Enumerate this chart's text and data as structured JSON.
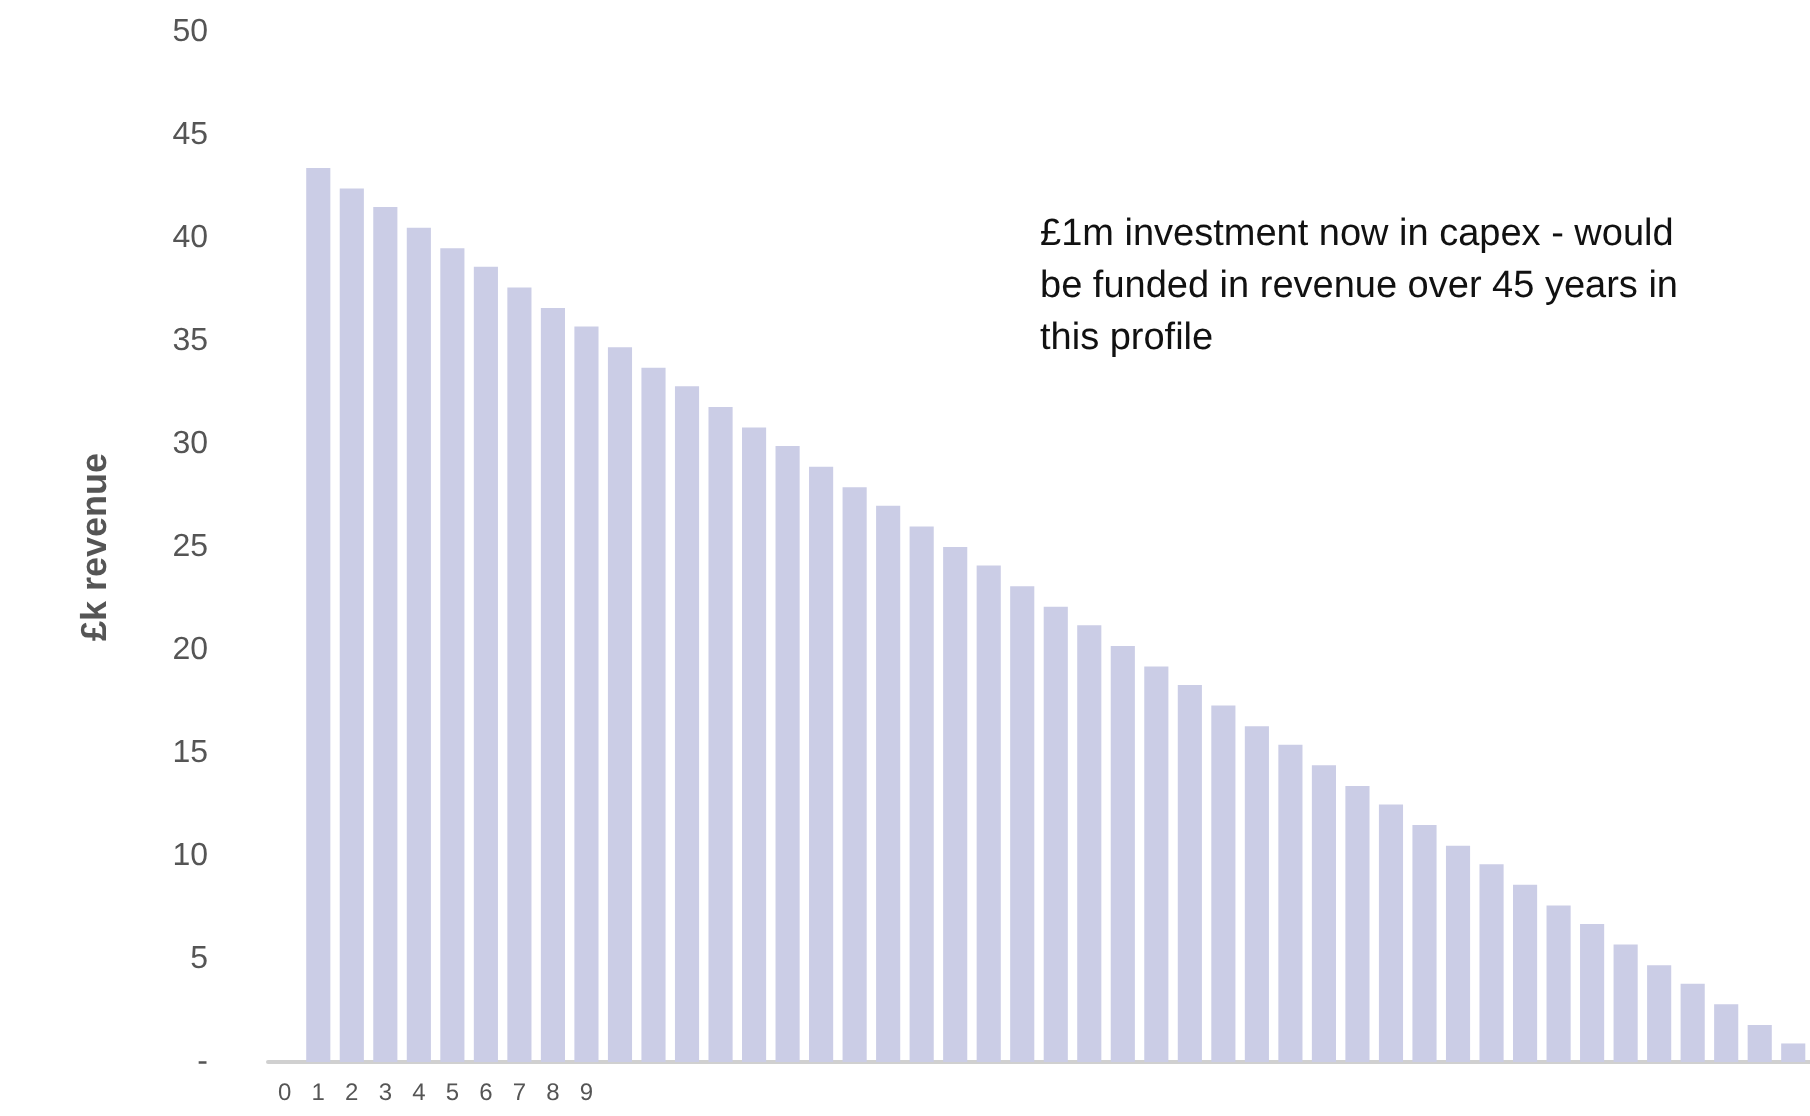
{
  "chart_data": {
    "type": "bar",
    "ylabel": "£k revenue",
    "annotations": [
      "£1m investment now in capex - would be funded in revenue over 45 years in this profile"
    ],
    "categories": [
      "0",
      "1",
      "2",
      "3",
      "4",
      "5",
      "6",
      "7",
      "8",
      "9",
      null,
      null,
      null,
      null,
      null,
      null,
      null,
      null,
      null,
      null,
      null,
      null,
      null,
      null,
      null,
      null,
      null,
      null,
      null,
      null,
      null,
      null,
      null,
      null,
      null,
      null,
      null,
      null,
      null,
      null,
      null,
      null,
      null,
      null,
      null,
      null
    ],
    "values": [
      null,
      43.4,
      42.4,
      41.5,
      40.5,
      39.5,
      38.6,
      37.6,
      36.6,
      35.7,
      34.7,
      33.7,
      32.8,
      31.8,
      30.8,
      29.9,
      28.9,
      27.9,
      27.0,
      26.0,
      25.0,
      24.1,
      23.1,
      22.1,
      21.2,
      20.2,
      19.2,
      18.3,
      17.3,
      16.3,
      15.4,
      14.4,
      13.4,
      12.5,
      11.5,
      10.5,
      9.6,
      8.6,
      7.6,
      6.7,
      5.7,
      4.7,
      3.8,
      2.8,
      1.8,
      0.9
    ],
    "color": "#cbcde6",
    "ylim": [
      0,
      50
    ],
    "yticks": [
      {
        "value": 0,
        "label": "-"
      },
      5,
      10,
      15,
      20,
      25,
      30,
      35,
      40,
      45,
      50
    ],
    "grid": false
  }
}
